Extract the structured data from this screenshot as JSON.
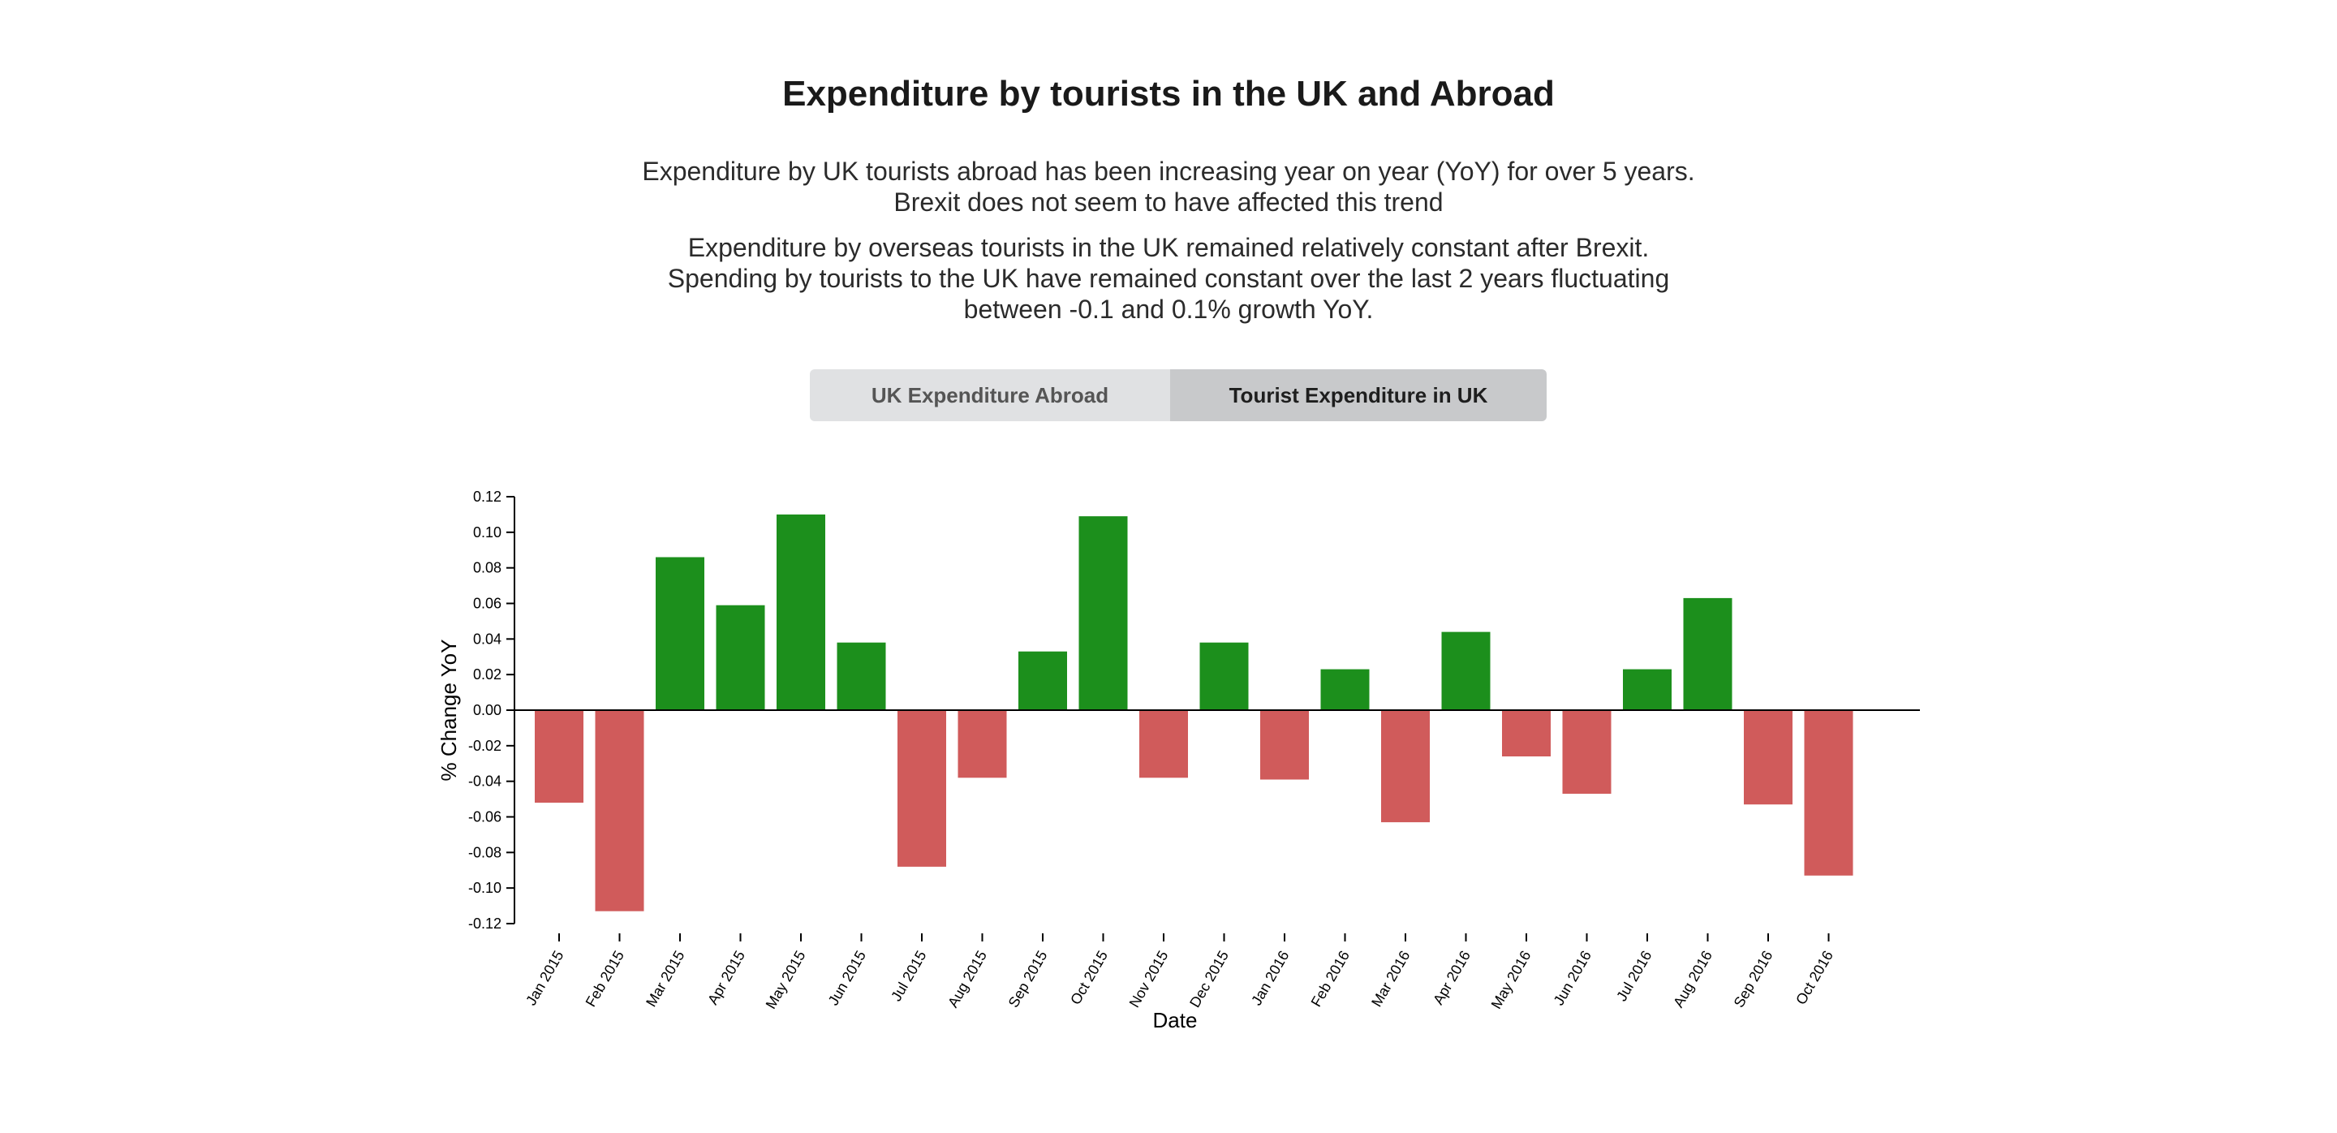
{
  "header": {
    "title": "Expenditure by tourists in the UK and Abroad",
    "paragraph1_line1": "Expenditure by UK tourists abroad has been increasing year on year (YoY) for over 5 years.",
    "paragraph1_line2": "Brexit does not seem to have affected this trend",
    "paragraph2_line1": "Expenditure by overseas tourists in the UK remained relatively constant after Brexit.",
    "paragraph2_line2": "Spending by tourists to the UK have remained constant over the last 2 years fluctuating",
    "paragraph2_line3": "between -0.1 and 0.1% growth YoY."
  },
  "tabs": [
    {
      "label": "UK Expenditure Abroad",
      "active": false
    },
    {
      "label": "Tourist Expenditure in UK",
      "active": true
    }
  ],
  "colors": {
    "positive": "#1c8f1c",
    "negative": "#d05b5b",
    "axis": "#000000"
  },
  "chart_data": {
    "type": "bar",
    "title": "",
    "xlabel": "Date",
    "ylabel": "% Change YoY",
    "ylim": [
      -0.12,
      0.12
    ],
    "yticks": [
      0.12,
      0.1,
      0.08,
      0.06,
      0.04,
      0.02,
      0.0,
      -0.02,
      -0.04,
      -0.06,
      -0.08,
      -0.1,
      -0.12
    ],
    "ytick_labels": [
      "0.12",
      "0.10",
      "0.08",
      "0.06",
      "0.04",
      "0.02",
      "0.00",
      "-0.02",
      "-0.04",
      "-0.06",
      "-0.08",
      "-0.10",
      "-0.12"
    ],
    "grid": false,
    "categories": [
      "Jan 2015",
      "Feb 2015",
      "Mar 2015",
      "Apr 2015",
      "May 2015",
      "Jun 2015",
      "Jul 2015",
      "Aug 2015",
      "Sep 2015",
      "Oct 2015",
      "Nov 2015",
      "Dec 2015",
      "Jan 2016",
      "Feb 2016",
      "Mar 2016",
      "Apr 2016",
      "May 2016",
      "Jun 2016",
      "Jul 2016",
      "Aug 2016",
      "Sep 2016",
      "Oct 2016"
    ],
    "values": [
      -0.052,
      -0.113,
      0.086,
      0.059,
      0.11,
      0.038,
      -0.088,
      -0.038,
      0.033,
      0.109,
      -0.038,
      0.038,
      -0.039,
      0.023,
      -0.063,
      0.044,
      -0.026,
      -0.047,
      0.023,
      0.063,
      -0.053,
      -0.093
    ]
  }
}
